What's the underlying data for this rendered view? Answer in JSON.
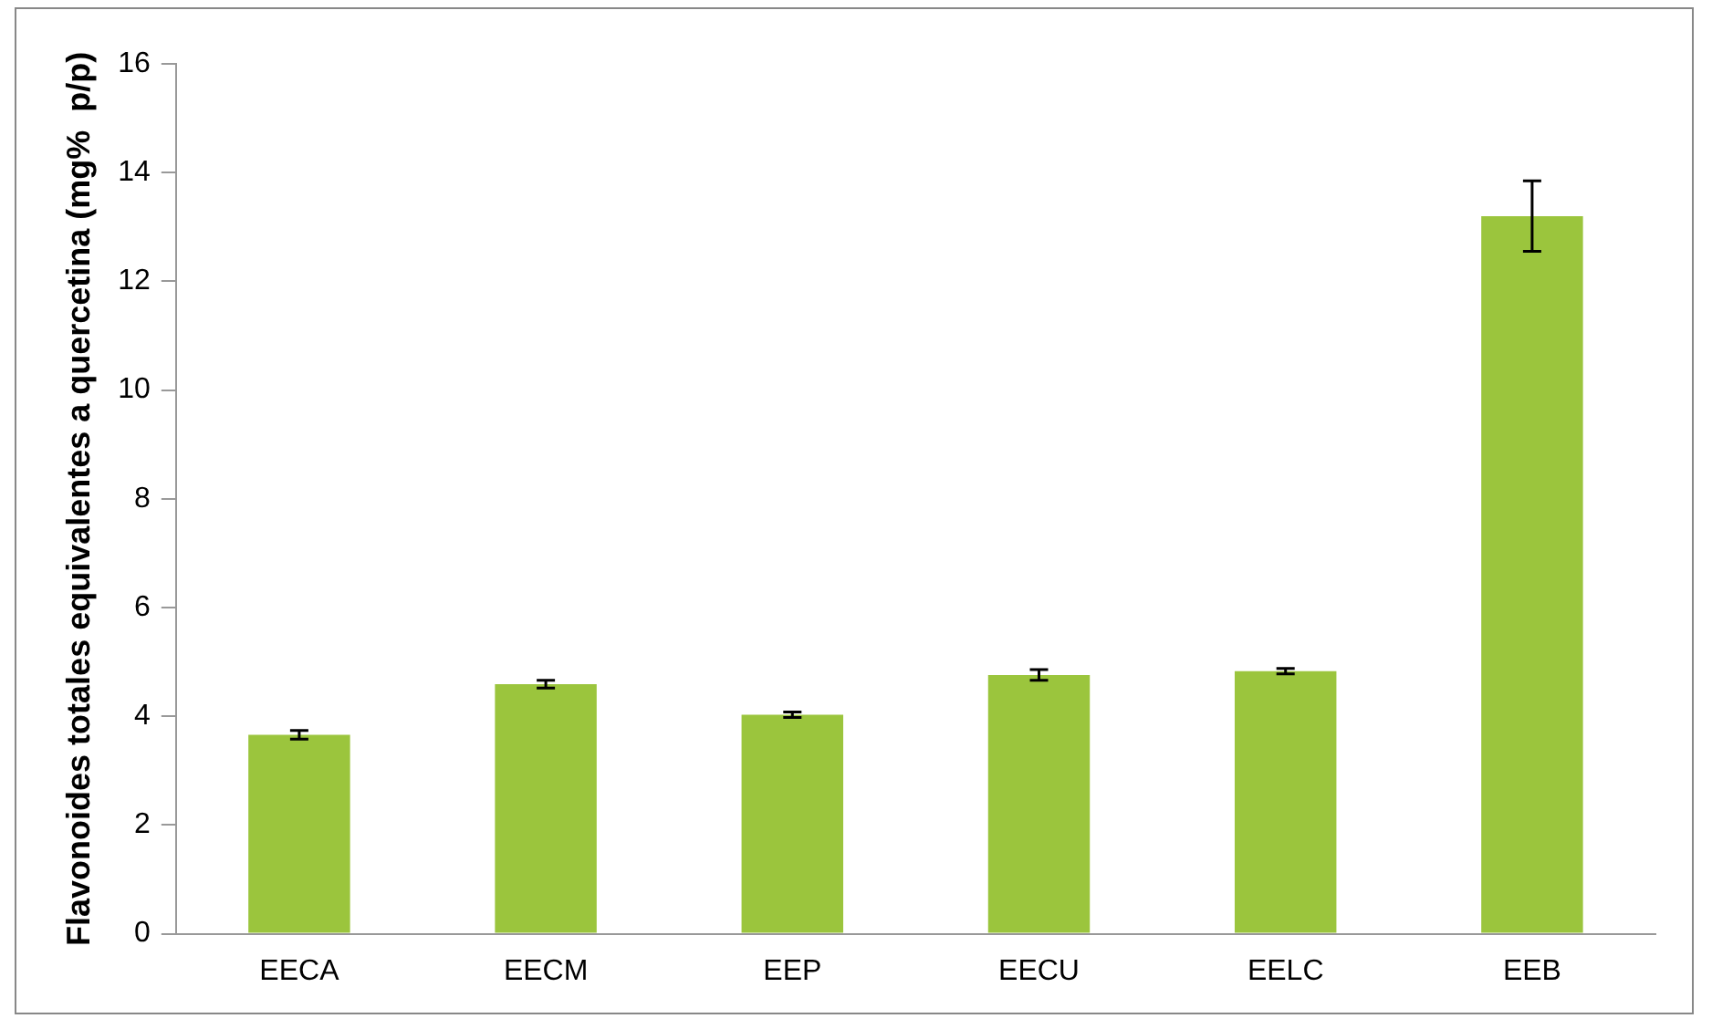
{
  "chart_data": {
    "type": "bar",
    "ylabel": "Flavonoides totales equivalentes a quercetina (mg%  p/p)",
    "categories": [
      "EECA",
      "EECM",
      "EEP",
      "EECU",
      "EELC",
      "EEB"
    ],
    "values": [
      3.66,
      4.59,
      4.03,
      4.76,
      4.83,
      13.2
    ],
    "errors": [
      0.08,
      0.07,
      0.05,
      0.1,
      0.05,
      0.65
    ],
    "color": "#9bc53d",
    "ylim": [
      0,
      16
    ],
    "yticks": [
      0,
      2,
      4,
      6,
      8,
      10,
      12,
      14,
      16
    ],
    "grid": false,
    "legend": false
  }
}
